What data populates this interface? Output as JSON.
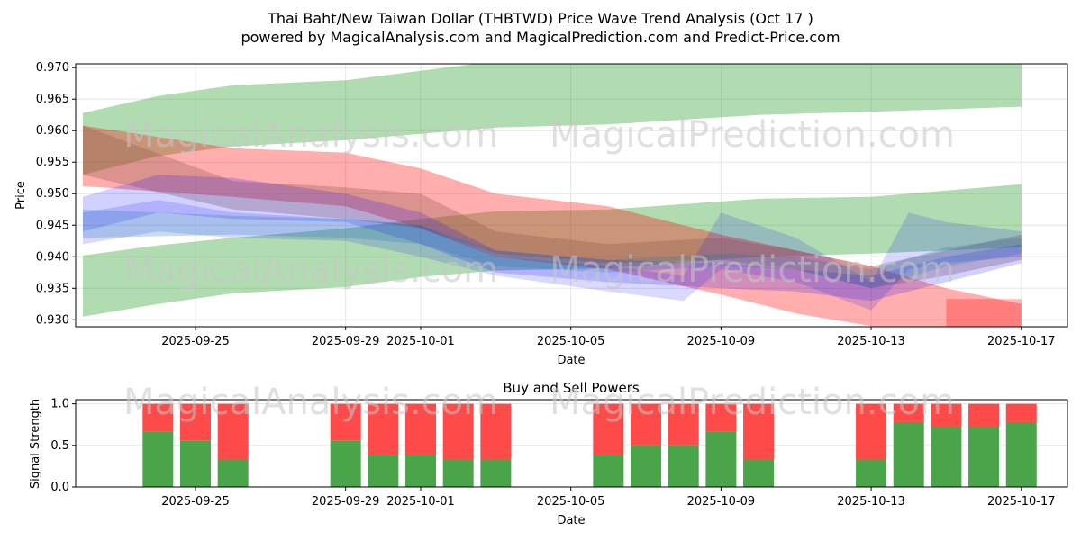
{
  "title_line1": "Thai Baht/New Taiwan Dollar (THBTWD) Price Wave Trend Analysis (Oct 17 )",
  "title_line2": "powered by MagicalAnalysis.com and MagicalPrediction.com and Predict-Price.com",
  "watermarks": [
    "MagicalAnalysis.com",
    "MagicalPrediction.com"
  ],
  "chart_data": [
    {
      "type": "area",
      "title": "",
      "xlabel": "Date",
      "ylabel": "Price",
      "ylim": [
        0.9289,
        0.9706
      ],
      "yticks": [
        "0.930",
        "0.935",
        "0.940",
        "0.945",
        "0.950",
        "0.955",
        "0.960",
        "0.965",
        "0.970"
      ],
      "xticks": [
        "2025-09-25",
        "2025-09-29",
        "2025-10-01",
        "2025-10-05",
        "2025-10-09",
        "2025-10-13",
        "2025-10-17"
      ],
      "grid": true,
      "bands": [
        {
          "color": "#2ca02c",
          "opacity": 0.37,
          "points": [
            [
              "2025-09-22",
              0.953,
              0.9628
            ],
            [
              "2025-09-24",
              0.956,
              0.9655
            ],
            [
              "2025-09-26",
              0.9575,
              0.9672
            ],
            [
              "2025-09-29",
              0.9585,
              0.968
            ],
            [
              "2025-10-01",
              0.9595,
              0.9695
            ],
            [
              "2025-10-03",
              0.9605,
              0.971
            ],
            [
              "2025-10-06",
              0.961,
              0.9715
            ],
            [
              "2025-10-10",
              0.9625,
              0.9715
            ],
            [
              "2025-10-13",
              0.963,
              0.9712
            ],
            [
              "2025-10-17",
              0.9638,
              0.971
            ]
          ]
        },
        {
          "color": "#2ca02c",
          "opacity": 0.37,
          "points": [
            [
              "2025-09-22",
              0.9305,
              0.9402
            ],
            [
              "2025-09-24",
              0.9325,
              0.9418
            ],
            [
              "2025-09-26",
              0.9342,
              0.943
            ],
            [
              "2025-09-29",
              0.9352,
              0.9445
            ],
            [
              "2025-10-01",
              0.9368,
              0.946
            ],
            [
              "2025-10-03",
              0.9378,
              0.9472
            ],
            [
              "2025-10-06",
              0.9382,
              0.9475
            ],
            [
              "2025-10-10",
              0.94,
              0.9492
            ],
            [
              "2025-10-13",
              0.9405,
              0.9495
            ],
            [
              "2025-10-17",
              0.9415,
              0.9515
            ]
          ]
        },
        {
          "color": "#ff0000",
          "opacity": 0.32,
          "points": [
            [
              "2025-09-22",
              0.9512,
              0.9608
            ],
            [
              "2025-09-26",
              0.9495,
              0.9572
            ],
            [
              "2025-09-29",
              0.948,
              0.9565
            ],
            [
              "2025-10-01",
              0.9445,
              0.954
            ],
            [
              "2025-10-03",
              0.94,
              0.95
            ],
            [
              "2025-10-06",
              0.938,
              0.948
            ],
            [
              "2025-10-09",
              0.934,
              0.9435
            ],
            [
              "2025-10-11",
              0.931,
              0.941
            ],
            [
              "2025-10-13",
              0.929,
              0.9385
            ],
            [
              "2025-10-15",
              0.927,
              0.935
            ],
            [
              "2025-10-17",
              0.926,
              0.9325
            ]
          ]
        },
        {
          "color": "#8c564b",
          "opacity": 0.3,
          "points": [
            [
              "2025-09-22",
              0.953,
              0.9608
            ],
            [
              "2025-09-26",
              0.9475,
              0.952
            ],
            [
              "2025-09-29",
              0.946,
              0.951
            ],
            [
              "2025-10-01",
              0.9445,
              0.95
            ],
            [
              "2025-10-03",
              0.9405,
              0.944
            ],
            [
              "2025-10-06",
              0.939,
              0.942
            ],
            [
              "2025-10-09",
              0.9395,
              0.943
            ],
            [
              "2025-10-11",
              0.938,
              0.941
            ],
            [
              "2025-10-13",
              0.935,
              0.9385
            ],
            [
              "2025-10-15",
              0.937,
              0.941
            ],
            [
              "2025-10-17",
              0.9395,
              0.9435
            ]
          ]
        },
        {
          "color": "#0000ff",
          "opacity": 0.18,
          "points": [
            [
              "2025-09-22",
              0.944,
              0.9495
            ],
            [
              "2025-09-24",
              0.947,
              0.953
            ],
            [
              "2025-09-26",
              0.946,
              0.9525
            ],
            [
              "2025-09-29",
              0.9455,
              0.95
            ],
            [
              "2025-10-01",
              0.942,
              0.947
            ],
            [
              "2025-10-03",
              0.9375,
              0.941
            ],
            [
              "2025-10-06",
              0.936,
              0.9395
            ],
            [
              "2025-10-09",
              0.935,
              0.939
            ],
            [
              "2025-10-11",
              0.9345,
              0.938
            ],
            [
              "2025-10-13",
              0.933,
              0.937
            ],
            [
              "2025-10-15",
              0.936,
              0.94
            ],
            [
              "2025-10-17",
              0.939,
              0.942
            ]
          ]
        },
        {
          "color": "#0000ff",
          "opacity": 0.15,
          "points": [
            [
              "2025-09-22",
              0.942,
              0.947
            ],
            [
              "2025-09-24",
              0.944,
              0.949
            ],
            [
              "2025-09-26",
              0.943,
              0.947
            ],
            [
              "2025-09-29",
              0.9425,
              0.946
            ],
            [
              "2025-10-01",
              0.94,
              0.945
            ],
            [
              "2025-10-03",
              0.937,
              0.94
            ],
            [
              "2025-10-06",
              0.9345,
              0.9385
            ],
            [
              "2025-10-08",
              0.933,
              0.937
            ],
            [
              "2025-10-09",
              0.938,
              0.947
            ],
            [
              "2025-10-11",
              0.936,
              0.943
            ],
            [
              "2025-10-13",
              0.9315,
              0.936
            ],
            [
              "2025-10-14",
              0.938,
              0.947
            ],
            [
              "2025-10-15",
              0.939,
              0.9455
            ],
            [
              "2025-10-17",
              0.94,
              0.944
            ]
          ]
        },
        {
          "color": "#1f77b4",
          "opacity": 0.25,
          "points": [
            [
              "2025-09-22",
              0.943,
              0.9475
            ],
            [
              "2025-09-26",
              0.9435,
              0.9465
            ],
            [
              "2025-09-29",
              0.943,
              0.946
            ],
            [
              "2025-10-01",
              0.942,
              0.945
            ],
            [
              "2025-10-03",
              0.9385,
              0.941
            ],
            [
              "2025-10-06",
              0.9375,
              0.9395
            ],
            [
              "2025-10-09",
              0.9385,
              0.9405
            ],
            [
              "2025-10-11",
              0.938,
              0.94
            ],
            [
              "2025-10-13",
              0.935,
              0.938
            ],
            [
              "2025-10-15",
              0.9385,
              0.9415
            ],
            [
              "2025-10-17",
              0.9405,
              0.943
            ]
          ]
        },
        {
          "color": "#ff0000",
          "opacity": 0.28,
          "points": [
            [
              "2025-10-15",
              0.9285,
              0.9333
            ],
            [
              "2025-10-17",
              0.9285,
              0.9333
            ]
          ]
        }
      ]
    },
    {
      "type": "bar",
      "title": "Buy and Sell Powers",
      "xlabel": "Date",
      "ylabel": "Signal Strength",
      "ylim": [
        0,
        1.05
      ],
      "yticks": [
        "0.0",
        "0.5",
        "1.0"
      ],
      "xticks": [
        "2025-09-25",
        "2025-09-29",
        "2025-10-01",
        "2025-10-05",
        "2025-10-09",
        "2025-10-13",
        "2025-10-17"
      ],
      "categories": [
        "2025-09-24",
        "2025-09-25",
        "2025-09-26",
        "2025-09-29",
        "2025-09-30",
        "2025-10-01",
        "2025-10-02",
        "2025-10-03",
        "2025-10-06",
        "2025-10-07",
        "2025-10-08",
        "2025-10-09",
        "2025-10-10",
        "2025-10-13",
        "2025-10-14",
        "2025-10-15",
        "2025-10-16",
        "2025-10-17"
      ],
      "series": [
        {
          "name": "Buy",
          "color": "#4aa54a",
          "values": [
            0.67,
            0.56,
            0.33,
            0.56,
            0.39,
            0.39,
            0.33,
            0.33,
            0.39,
            0.5,
            0.5,
            0.67,
            0.33,
            0.33,
            0.78,
            0.72,
            0.72,
            0.78
          ]
        },
        {
          "name": "Sell",
          "color": "#ff4a4a",
          "values": [
            0.33,
            0.44,
            0.67,
            0.44,
            0.61,
            0.61,
            0.67,
            0.67,
            0.61,
            0.5,
            0.5,
            0.33,
            0.67,
            0.67,
            0.22,
            0.28,
            0.28,
            0.22
          ]
        }
      ]
    }
  ]
}
